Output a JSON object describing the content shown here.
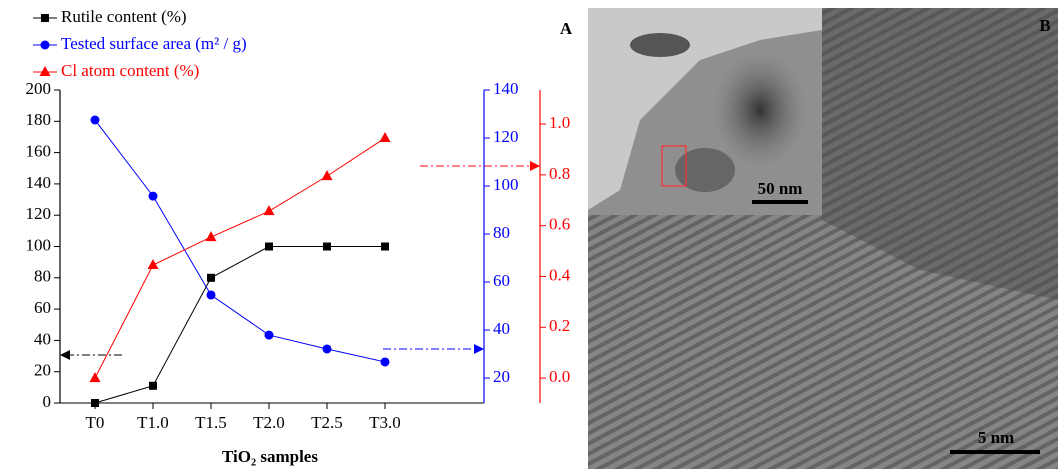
{
  "chart_data": {
    "type": "line",
    "x_label": "TiO₂ samples",
    "categories": [
      "T0",
      "T1.0",
      "T1.5",
      "T2.0",
      "T2.5",
      "T3.0"
    ],
    "series": [
      {
        "name": "Rutile content (%)",
        "color": "#000000",
        "marker": "square",
        "axis": "y",
        "values": [
          0,
          11,
          80,
          100,
          100,
          100
        ]
      },
      {
        "name": "Tested surface area (m² / g)",
        "color": "#0000ff",
        "marker": "circle",
        "axis": "y2",
        "values": [
          127.5,
          95.8,
          54.6,
          37.9,
          32.1,
          26.7
        ]
      },
      {
        "name": "Cl atom content (%)",
        "color": "#ff0000",
        "marker": "triangle",
        "axis": "y3",
        "values": [
          0.0,
          0.445,
          0.555,
          0.657,
          0.795,
          0.945
        ]
      }
    ],
    "ylim": [
      0,
      200
    ],
    "yticks": [
      0,
      20,
      40,
      60,
      80,
      100,
      120,
      140,
      160,
      180,
      200
    ],
    "y2lim": [
      9.6,
      140
    ],
    "y2ticks": [
      20,
      40,
      60,
      80,
      100,
      120,
      140
    ],
    "y3lim": [
      -0.098,
      1.134
    ],
    "y3ticks": [
      {
        "value": 0,
        "label": "0.0"
      },
      0.2,
      0.4,
      0.6,
      0.8,
      {
        "value": 1,
        "label": "1.0"
      }
    ]
  },
  "figure": {
    "panel_labels": [
      "A",
      "B"
    ],
    "scale_bars": [
      "50 nm",
      "5 nm"
    ]
  }
}
